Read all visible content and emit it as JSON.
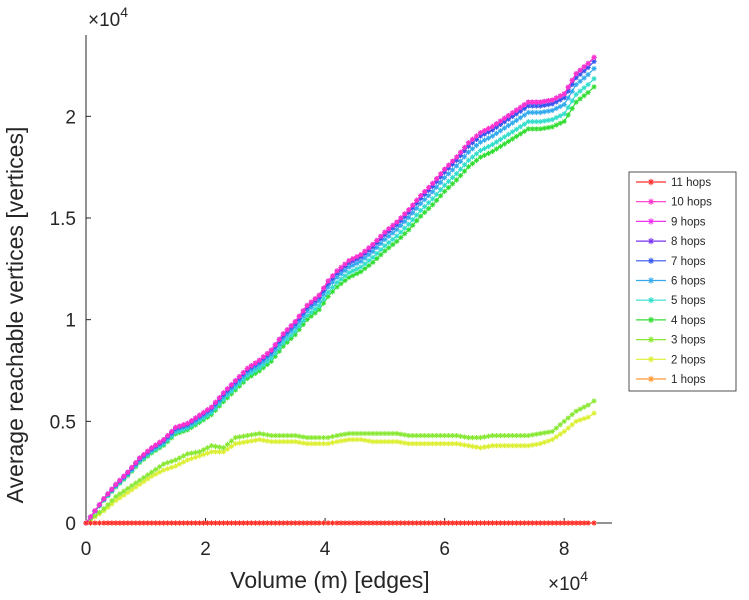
{
  "chart_data": {
    "type": "line",
    "title": "",
    "xlabel": "Volume (m) [edges]",
    "ylabel": "Average reachable vertices [vertices]",
    "x_exponent_label": {
      "base": "×10",
      "exp": "4"
    },
    "y_exponent_label": {
      "base": "×10",
      "exp": "4"
    },
    "xlim": [
      0,
      88000
    ],
    "ylim": [
      0,
      24000
    ],
    "x_ticks": [
      0,
      20000,
      40000,
      60000,
      80000
    ],
    "x_tick_labels": [
      "0",
      "2",
      "4",
      "6",
      "8"
    ],
    "y_ticks": [
      0,
      5000,
      10000,
      15000,
      20000
    ],
    "y_tick_labels": [
      "0",
      "0.5",
      "1",
      "1.5",
      "2"
    ],
    "grid": false,
    "legend_position": "right",
    "x": [
      0,
      3000,
      5000,
      7000,
      9000,
      11000,
      13000,
      15000,
      17000,
      19000,
      21000,
      23000,
      25000,
      27000,
      29000,
      31000,
      33000,
      35000,
      37000,
      39000,
      40500,
      42000,
      44000,
      46000,
      48000,
      50000,
      52000,
      54000,
      56000,
      58000,
      60000,
      62000,
      64000,
      66000,
      68000,
      70000,
      72000,
      74000,
      76000,
      78000,
      80000,
      82000,
      84000,
      85000
    ],
    "series": [
      {
        "name": "11 hops",
        "color": "#ff2a2a",
        "values": [
          0,
          0,
          0,
          0,
          0,
          0,
          0,
          0,
          0,
          0,
          0,
          0,
          0,
          0,
          0,
          0,
          0,
          0,
          0,
          0,
          0,
          0,
          0,
          0,
          0,
          0,
          0,
          0,
          0,
          0,
          0,
          0,
          0,
          0,
          0,
          0,
          0,
          0,
          0,
          0,
          0,
          0,
          0,
          0
        ]
      },
      {
        "name": "10 hops",
        "color": "#ff33cc",
        "values": [
          0,
          1200,
          1900,
          2500,
          3200,
          3700,
          4100,
          4700,
          4900,
          5300,
          5700,
          6400,
          7000,
          7600,
          8000,
          8500,
          9300,
          9900,
          10700,
          11200,
          11900,
          12400,
          12900,
          13200,
          13700,
          14300,
          14800,
          15400,
          16100,
          16700,
          17400,
          18000,
          18700,
          19200,
          19500,
          19900,
          20300,
          20700,
          20700,
          20800,
          21100,
          22100,
          22600,
          22900
        ]
      },
      {
        "name": "9 hops",
        "color": "#ee33ee",
        "values": [
          0,
          1200,
          1900,
          2500,
          3200,
          3700,
          4100,
          4700,
          4900,
          5300,
          5700,
          6400,
          7000,
          7600,
          8000,
          8500,
          9300,
          9900,
          10700,
          11200,
          11900,
          12400,
          12900,
          13200,
          13700,
          14300,
          14800,
          15400,
          16100,
          16700,
          17400,
          18000,
          18700,
          19200,
          19500,
          19900,
          20300,
          20700,
          20700,
          20800,
          21100,
          22100,
          22600,
          22900
        ]
      },
      {
        "name": "8 hops",
        "color": "#7a33ee",
        "values": [
          0,
          1200,
          1900,
          2500,
          3200,
          3700,
          4100,
          4700,
          4900,
          5300,
          5700,
          6400,
          7000,
          7600,
          8000,
          8500,
          9300,
          9900,
          10700,
          11200,
          11900,
          12400,
          12900,
          13200,
          13700,
          14300,
          14800,
          15400,
          16100,
          16700,
          17400,
          18000,
          18700,
          19200,
          19500,
          19900,
          20300,
          20700,
          20700,
          20800,
          21100,
          22100,
          22600,
          22900
        ]
      },
      {
        "name": "7 hops",
        "color": "#3355ee",
        "values": [
          0,
          1180,
          1870,
          2460,
          3150,
          3650,
          4050,
          4650,
          4850,
          5250,
          5650,
          6330,
          6930,
          7530,
          7920,
          8420,
          9210,
          9800,
          10600,
          11100,
          11780,
          12280,
          12780,
          13080,
          13570,
          14170,
          14660,
          15260,
          15960,
          16550,
          17250,
          17840,
          18530,
          19030,
          19330,
          19730,
          20120,
          20510,
          20510,
          20610,
          20910,
          21900,
          22400,
          22700
        ]
      },
      {
        "name": "6 hops",
        "color": "#33aaee",
        "values": [
          0,
          1160,
          1840,
          2420,
          3100,
          3590,
          3980,
          4570,
          4770,
          5160,
          5550,
          6220,
          6810,
          7400,
          7790,
          8280,
          9060,
          9640,
          10430,
          10920,
          11600,
          12090,
          12580,
          12870,
          13350,
          13940,
          14430,
          15020,
          15710,
          16290,
          16980,
          17560,
          18240,
          18730,
          19030,
          19420,
          19800,
          20190,
          20190,
          20290,
          20580,
          21560,
          22050,
          22350
        ]
      },
      {
        "name": "5 hops",
        "color": "#33ddcc",
        "values": [
          0,
          1140,
          1800,
          2370,
          3030,
          3510,
          3890,
          4460,
          4660,
          5040,
          5420,
          6080,
          6660,
          7240,
          7620,
          8100,
          8860,
          9430,
          10200,
          10680,
          11350,
          11830,
          12310,
          12590,
          13060,
          13630,
          14110,
          14690,
          15370,
          15940,
          16610,
          17180,
          17840,
          18320,
          18610,
          18990,
          19360,
          19740,
          19740,
          19840,
          20120,
          21080,
          21560,
          21850
        ]
      },
      {
        "name": "4 hops",
        "color": "#33dd33",
        "values": [
          0,
          1120,
          1770,
          2330,
          2980,
          3450,
          3820,
          4380,
          4580,
          4950,
          5330,
          5970,
          6540,
          7110,
          7480,
          7950,
          8700,
          9260,
          10010,
          10490,
          11140,
          11610,
          12080,
          12360,
          12820,
          13380,
          13850,
          14420,
          15090,
          15650,
          16310,
          16870,
          17520,
          17990,
          18270,
          18640,
          19010,
          19380,
          19380,
          19480,
          19750,
          20700,
          21170,
          21450
        ]
      },
      {
        "name": "3 hops",
        "color": "#88e833",
        "values": [
          0,
          700,
          1300,
          1700,
          2100,
          2500,
          2900,
          3100,
          3400,
          3500,
          3800,
          3700,
          4200,
          4300,
          4400,
          4300,
          4300,
          4300,
          4200,
          4200,
          4200,
          4300,
          4400,
          4400,
          4400,
          4400,
          4400,
          4300,
          4300,
          4300,
          4300,
          4300,
          4200,
          4200,
          4300,
          4300,
          4300,
          4300,
          4400,
          4500,
          5000,
          5500,
          5800,
          6000
        ]
      },
      {
        "name": "2 hops",
        "color": "#dcef33",
        "values": [
          0,
          600,
          1100,
          1500,
          1900,
          2300,
          2600,
          2800,
          3100,
          3300,
          3500,
          3500,
          3900,
          4000,
          4100,
          4000,
          4000,
          4000,
          3900,
          3900,
          3900,
          4000,
          4100,
          4100,
          4000,
          4000,
          4000,
          3900,
          3900,
          3900,
          3900,
          3900,
          3800,
          3700,
          3800,
          3800,
          3800,
          3800,
          3900,
          4100,
          4500,
          5000,
          5200,
          5400
        ]
      },
      {
        "name": "1 hops",
        "color": "#ff9933",
        "values": [
          0,
          0,
          0,
          0,
          0,
          0,
          0,
          0,
          0,
          0,
          0,
          0,
          0,
          0,
          0,
          0,
          0,
          0,
          0,
          0,
          0,
          0,
          0,
          0,
          0,
          0,
          0,
          0,
          0,
          0,
          0,
          0,
          0,
          0,
          0,
          0,
          0,
          0,
          0,
          0,
          0,
          0,
          0,
          0
        ]
      }
    ]
  }
}
